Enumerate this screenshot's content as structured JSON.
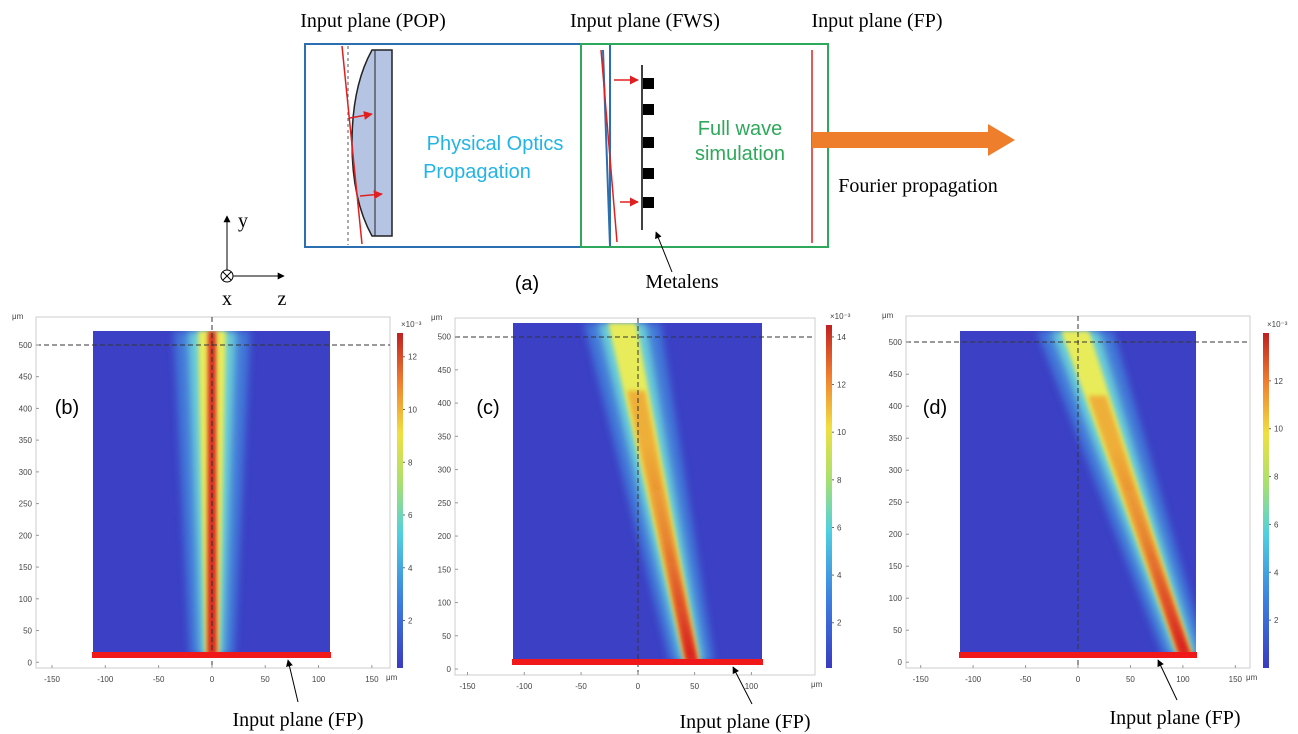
{
  "diagram": {
    "input_plane_pop": "Input plane (POP)",
    "input_plane_fws": "Input plane (FWS)",
    "input_plane_fp": "Input plane (FP)",
    "pop_label": [
      "Physical Optics",
      "Propagation"
    ],
    "fws_label": [
      "Full wave",
      "simulation"
    ],
    "fourier_label": "Fourier propagation",
    "metalens_label": "Metalens",
    "caption": "(a)",
    "axes": {
      "y": "y",
      "x": "x",
      "z": "z"
    }
  },
  "panels": [
    {
      "label": "(b)",
      "x_unit": "μm",
      "y_unit": "μm",
      "xlim": [
        -165,
        167
      ],
      "ylim": [
        -9,
        544
      ],
      "xticks": [
        -150,
        -100,
        -50,
        0,
        50,
        100,
        150
      ],
      "yticks": [
        0,
        50,
        100,
        150,
        200,
        250,
        300,
        350,
        400,
        450,
        500
      ],
      "colorbar": {
        "exponent": "×10⁻³",
        "clim": [
          0.2,
          12.9
        ],
        "ticks": [
          2,
          4,
          6,
          8,
          10,
          12
        ]
      },
      "annotation": "Input plane (FP)"
    },
    {
      "label": "(c)",
      "x_unit": "μm",
      "y_unit": "μm",
      "xlim": [
        -161,
        156
      ],
      "ylim": [
        -9,
        528
      ],
      "xticks": [
        -150,
        -100,
        -50,
        0,
        50,
        100
      ],
      "yticks": [
        0,
        50,
        100,
        150,
        200,
        250,
        300,
        350,
        400,
        450,
        500
      ],
      "colorbar": {
        "exponent": "×10⁻³",
        "clim": [
          0.1,
          14.5
        ],
        "ticks": [
          2,
          4,
          6,
          8,
          10,
          12,
          14
        ]
      },
      "annotation": "Input plane (FP)"
    },
    {
      "label": "(d)",
      "x_unit": "μm",
      "y_unit": "μm",
      "xlim": [
        -164,
        164
      ],
      "ylim": [
        -9,
        541
      ],
      "xticks": [
        -150,
        -100,
        -50,
        0,
        50,
        100,
        150
      ],
      "yticks": [
        0,
        50,
        100,
        150,
        200,
        250,
        300,
        350,
        400,
        450,
        500
      ],
      "colorbar": {
        "exponent": "×10⁻³",
        "clim": [
          0,
          14
        ],
        "ticks": [
          2,
          4,
          6,
          8,
          10,
          12
        ]
      },
      "annotation": "Input plane (FP)"
    }
  ]
}
